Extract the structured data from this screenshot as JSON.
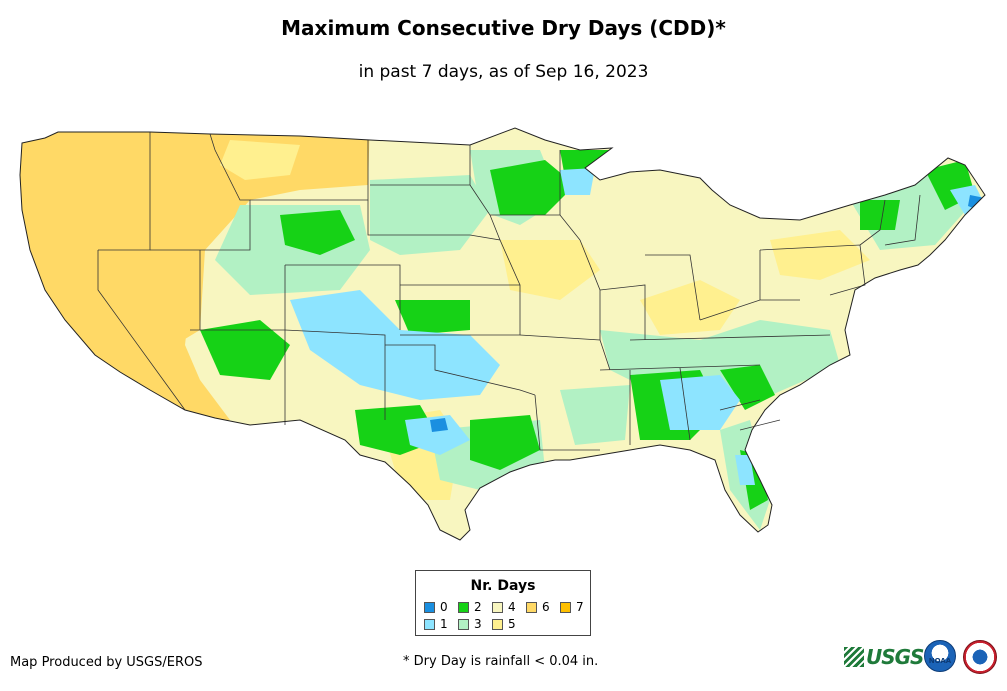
{
  "title": "Maximum Consecutive Dry Days (CDD)*",
  "subtitle": "in past 7 days, as of Sep 16, 2023",
  "legend": {
    "title": "Nr. Days",
    "items": [
      {
        "label": "0",
        "color": "#1a8fe0"
      },
      {
        "label": "1",
        "color": "#8de4ff"
      },
      {
        "label": "2",
        "color": "#16d216"
      },
      {
        "label": "3",
        "color": "#b2f1c4"
      },
      {
        "label": "4",
        "color": "#f8f6c0"
      },
      {
        "label": "5",
        "color": "#fff08f"
      },
      {
        "label": "6",
        "color": "#ffd966"
      },
      {
        "label": "7",
        "color": "#ffc000"
      }
    ]
  },
  "credit": "Map Produced by USGS/EROS",
  "footnote": "* Dry Day is rainfall < 0.04 in.",
  "logos": {
    "usgs": "USGS",
    "noaa": "NOAA"
  }
}
